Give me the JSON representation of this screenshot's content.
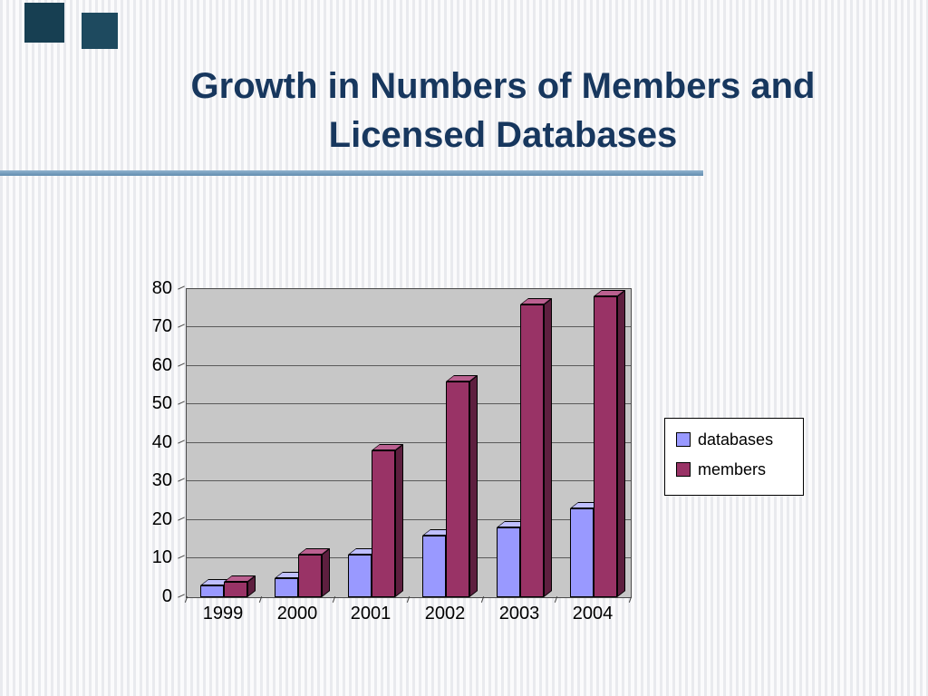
{
  "slide": {
    "title": "Growth in Numbers of Members and Licensed Databases",
    "title_lines": [
      "Growth in Numbers of Members and",
      "Licensed Databases"
    ]
  },
  "colors": {
    "title_text": "#17375E",
    "divider_line": "#6F97B8",
    "decor_square": "#1E4A5F",
    "plot_background": "#C7C7C7",
    "gridline": "#5A5A5A",
    "legend_background": "#FFFFFF"
  },
  "chart_data": {
    "type": "bar",
    "style": "3d-clustered-column",
    "title": "",
    "xlabel": "",
    "ylabel": "",
    "categories": [
      "1999",
      "2000",
      "2001",
      "2002",
      "2003",
      "2004"
    ],
    "series": [
      {
        "name": "databases",
        "values": [
          3,
          5,
          11,
          16,
          18,
          23
        ],
        "color": "#9999FF",
        "color_top": "#BFBFFF",
        "color_side": "#6666B3"
      },
      {
        "name": "members",
        "values": [
          4,
          11,
          38,
          56,
          76,
          78
        ],
        "color": "#993366",
        "color_top": "#BB6090",
        "color_side": "#5E1F3F"
      }
    ],
    "ylim": [
      0,
      80
    ],
    "yticks": [
      0,
      10,
      20,
      30,
      40,
      50,
      60,
      70,
      80
    ],
    "grid": true,
    "legend_position": "right"
  }
}
